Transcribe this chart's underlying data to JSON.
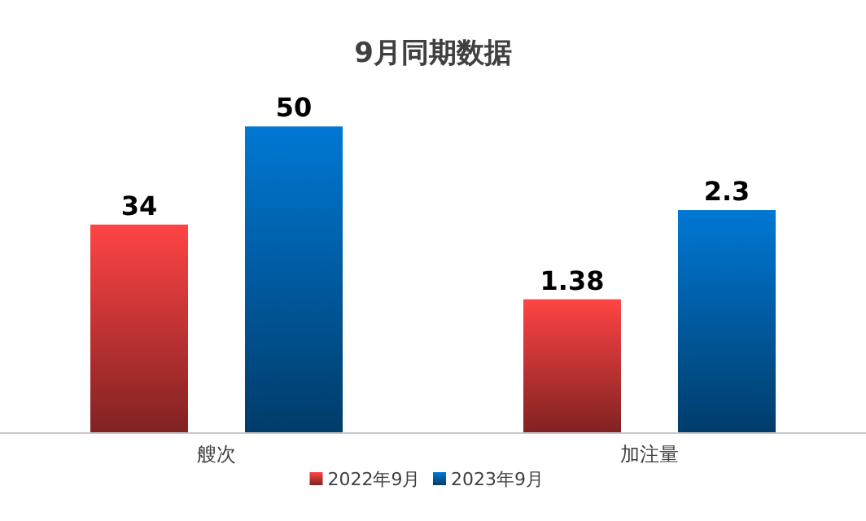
{
  "chart_data": {
    "type": "bar",
    "title": "9月同期数据",
    "categories": [
      "艘次",
      "加注量"
    ],
    "data_labels": true,
    "legend": "bottom",
    "series": [
      {
        "name": "2022年9月",
        "color": "#ff4444",
        "values": [
          34,
          null
        ]
      },
      {
        "name": "2023年9月",
        "color": "#0078d4",
        "values": [
          50,
          null
        ]
      },
      {
        "color": "#ff4444",
        "values": [
          null,
          1.38
        ],
        "axis": "y2"
      },
      {
        "color": "#0078d4",
        "values": [
          null,
          2.3
        ],
        "axis": "y2"
      }
    ]
  }
}
